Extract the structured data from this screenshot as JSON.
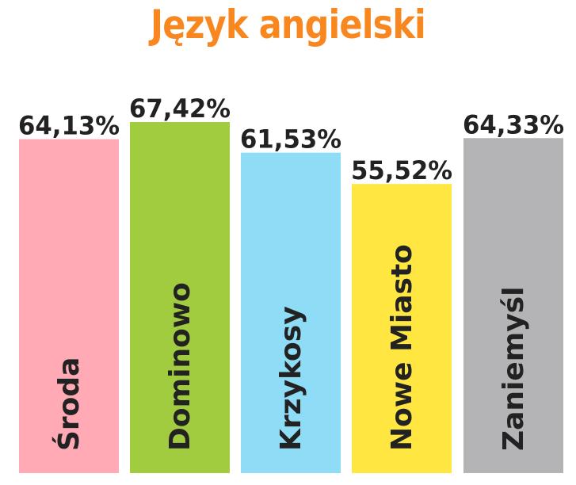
{
  "colors": {
    "title": "#f7871e",
    "text": "#222222",
    "background": "#ffffff"
  },
  "chart_data": {
    "type": "bar",
    "title": "Język angielski",
    "xlabel": "",
    "ylabel": "",
    "ylim": [
      0,
      70
    ],
    "grid": false,
    "legend": "none",
    "categories": [
      "Środa",
      "Dominowo",
      "Krzykosy",
      "Nowe Miasto",
      "Zaniemyśl"
    ],
    "values": [
      64.13,
      67.42,
      61.53,
      55.52,
      64.33
    ],
    "value_labels": [
      "64,13%",
      "67,42%",
      "61,53%",
      "55,52%",
      "64,33%"
    ],
    "bar_colors": [
      "#ffaab4",
      "#a2cc3f",
      "#8fdcf7",
      "#ffe640",
      "#b4b4b6"
    ]
  }
}
